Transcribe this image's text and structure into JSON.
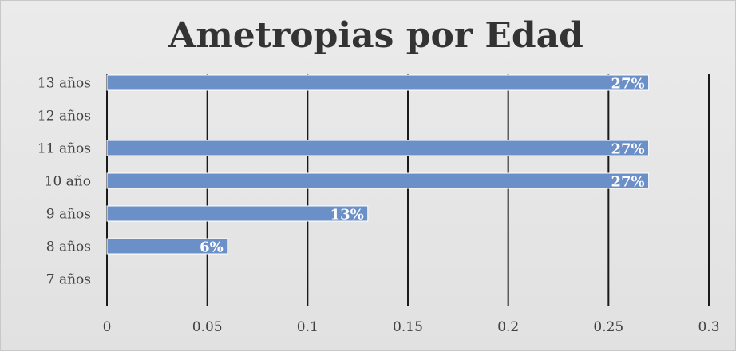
{
  "chart_data": {
    "type": "bar",
    "orientation": "horizontal",
    "title": "Ametropias por Edad",
    "categories": [
      "13 años",
      "12 años",
      "11 años",
      "10 año",
      "9 años",
      "8 años",
      "7 años"
    ],
    "values": [
      0.27,
      null,
      0.27,
      0.27,
      0.13,
      0.06,
      null
    ],
    "data_labels": [
      "27%",
      "",
      "27%",
      "27%",
      "13%",
      "6%",
      ""
    ],
    "xlim": [
      0,
      0.3
    ],
    "xticks": [
      "0",
      "0.05",
      "0.1",
      "0.15",
      "0.2",
      "0.25",
      "0.3"
    ],
    "grid": true,
    "legend": "none",
    "bar_color": "#6b8fc7",
    "grid_color": "#1a1a1a"
  }
}
